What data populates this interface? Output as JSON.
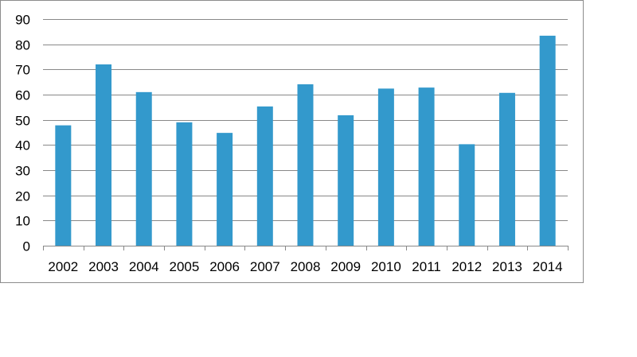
{
  "chart_data": {
    "type": "bar",
    "title": "",
    "xlabel": "",
    "ylabel": "",
    "categories": [
      "2002",
      "2003",
      "2004",
      "2005",
      "2006",
      "2007",
      "2008",
      "2009",
      "2010",
      "2011",
      "2012",
      "2013",
      "2014"
    ],
    "values": [
      47.8,
      72.0,
      61.0,
      49.0,
      44.8,
      55.3,
      64.1,
      51.8,
      62.4,
      62.8,
      40.3,
      60.7,
      83.4
    ],
    "ylim": [
      0,
      90
    ],
    "yticks": [
      "0",
      "10",
      "20",
      "30",
      "40",
      "50",
      "60",
      "70",
      "80",
      "90"
    ],
    "grid": true,
    "legend": "none",
    "colors": {
      "bar": "#3399CC",
      "grid": "#888888",
      "axis": "#888888",
      "frame": "#8c8c8c"
    }
  }
}
